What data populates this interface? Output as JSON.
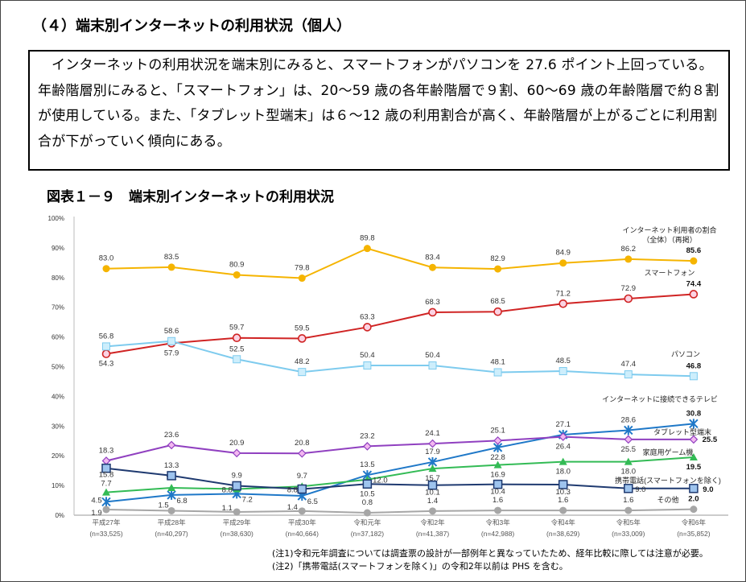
{
  "section_title": "（４）端末別インターネットの利用状況（個人）",
  "summary": "インターネットの利用状況を端末別にみると、スマートフォンがパソコンを 27.6 ポイント上回っている。年齢階層別にみると、「スマートフォン」は、20～59 歳の各年齢階層で９割、60～69 歳の年齢階層で約８割が使用している。また、「タブレット型端末」は６～12 歳の利用割合が高く、年齢階層が上がるごとに利用割合が下がっていく傾向にある。",
  "figure_title": "図表１－９　端末別インターネットの利用状況",
  "notes": [
    "(注1)令和元年調査については調査票の設計が一部例年と異なっていたため、経年比較に際しては注意が必要。",
    "(注2)「携帯電話(スマートフォンを除く)」の令和2年以前は PHS を含む。"
  ],
  "chart_data": {
    "type": "line",
    "categories": [
      "平成27年",
      "平成28年",
      "平成29年",
      "平成30年",
      "令和元年",
      "令和2年",
      "令和3年",
      "令和4年",
      "令和5年",
      "令和6年"
    ],
    "sample_sizes": [
      "(n=33,525)",
      "(n=40,297)",
      "(n=38,630)",
      "(n=40,664)",
      "(n=37,182)",
      "(n=41,387)",
      "(n=42,988)",
      "(n=38,629)",
      "(n=33,009)",
      "(n=35,852)"
    ],
    "ylim": [
      0,
      100
    ],
    "yticks": [
      "0%",
      "10%",
      "20%",
      "30%",
      "40%",
      "50%",
      "60%",
      "70%",
      "80%",
      "90%",
      "100%"
    ],
    "grid": false,
    "series": [
      {
        "name": "インターネット利用者の割合\n（全体）（再掲）",
        "color": "#f5b400",
        "marker": "circle-filled",
        "values": [
          83.0,
          83.5,
          80.9,
          79.8,
          89.8,
          83.4,
          82.9,
          84.9,
          86.2,
          85.6
        ]
      },
      {
        "name": "スマートフォン",
        "color": "#d02424",
        "marker": "circle-open",
        "values": [
          54.3,
          57.9,
          59.7,
          59.5,
          63.3,
          68.3,
          68.5,
          71.2,
          72.9,
          74.4
        ]
      },
      {
        "name": "パソコン",
        "color": "#7ecbee",
        "marker": "square-light",
        "values": [
          56.8,
          58.6,
          52.5,
          48.2,
          50.4,
          50.4,
          48.1,
          48.5,
          47.4,
          46.8
        ]
      },
      {
        "name": "インターネットに接続できるテレビ",
        "color": "#1f78c8",
        "marker": "asterisk",
        "values": [
          4.5,
          6.8,
          7.2,
          6.5,
          13.5,
          17.9,
          22.8,
          27.1,
          28.6,
          30.8
        ]
      },
      {
        "name": "タブレット型端末",
        "color": "#9040c0",
        "marker": "diamond",
        "values": [
          18.3,
          23.6,
          20.9,
          20.8,
          23.2,
          24.1,
          25.1,
          26.4,
          25.5,
          25.5
        ]
      },
      {
        "name": "家庭用ゲーム機",
        "color": "#33bb55",
        "marker": "triangle",
        "values": [
          7.7,
          9.2,
          8.8,
          9.7,
          12.0,
          15.7,
          16.9,
          18.0,
          18.0,
          19.5
        ]
      },
      {
        "name": "携帯電話(スマートフォンを除く)",
        "color": "#1f3a70",
        "marker": "square-navy",
        "values": [
          15.8,
          13.3,
          9.9,
          8.8,
          10.5,
          10.1,
          10.4,
          10.3,
          9.0,
          9.0
        ]
      },
      {
        "name": "その他",
        "color": "#a6a6a6",
        "marker": "circle-gray",
        "values": [
          1.9,
          1.5,
          1.1,
          1.4,
          0.8,
          1.4,
          1.6,
          1.6,
          1.6,
          2.0
        ]
      }
    ]
  }
}
